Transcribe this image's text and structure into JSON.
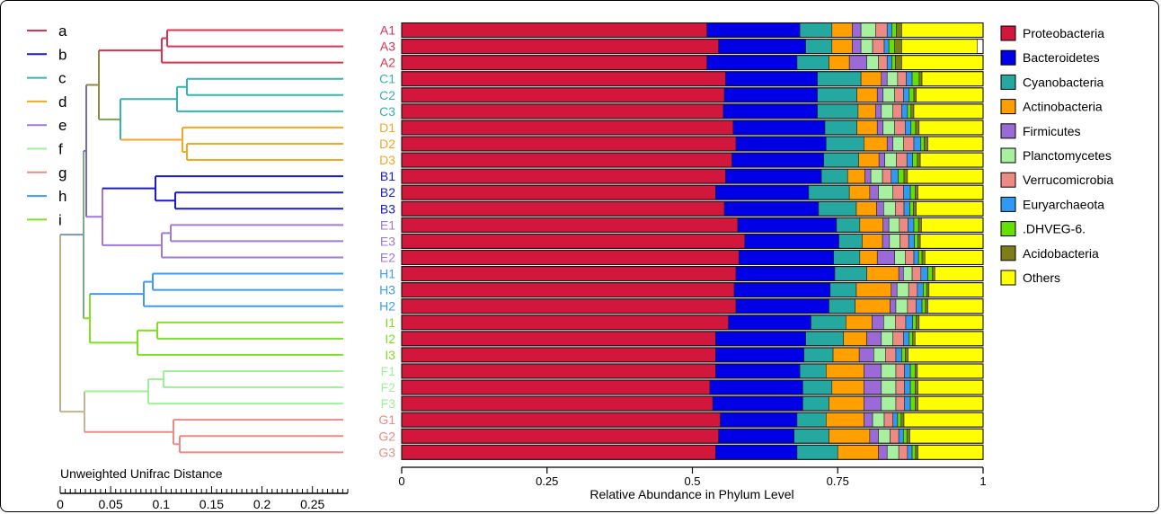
{
  "chart_data": {
    "type": "bar",
    "orientation": "horizontal",
    "stacked": true,
    "xlabel": "Relative Abundance in Phylum Level",
    "xlim": [
      0,
      1
    ],
    "xticks": [
      "0",
      "0.25",
      "0.5",
      "0.75",
      "1"
    ],
    "xtick_values": [
      0,
      0.25,
      0.5,
      0.75,
      1
    ],
    "legend_position": "right",
    "categories": [
      "A1",
      "A3",
      "A2",
      "C1",
      "C2",
      "C3",
      "D1",
      "D2",
      "D3",
      "B1",
      "B2",
      "B3",
      "E1",
      "E3",
      "E2",
      "H1",
      "H3",
      "H2",
      "I1",
      "I2",
      "I3",
      "F1",
      "F2",
      "F3",
      "G1",
      "G2",
      "G3"
    ],
    "category_groups": [
      "a",
      "a",
      "a",
      "c",
      "c",
      "c",
      "d",
      "d",
      "d",
      "b",
      "b",
      "b",
      "e",
      "e",
      "e",
      "h",
      "h",
      "h",
      "i",
      "i",
      "i",
      "f",
      "f",
      "f",
      "g",
      "g",
      "g"
    ],
    "series": [
      {
        "name": "Proteobacteria",
        "color": "#d2163c",
        "values": [
          0.525,
          0.545,
          0.525,
          0.557,
          0.555,
          0.553,
          0.57,
          0.575,
          0.568,
          0.557,
          0.54,
          0.555,
          0.578,
          0.59,
          0.58,
          0.575,
          0.572,
          0.575,
          0.562,
          0.54,
          0.54,
          0.54,
          0.53,
          0.535,
          0.548,
          0.545,
          0.54
        ]
      },
      {
        "name": "Bacteroidetes",
        "color": "#0000e6",
        "values": [
          0.16,
          0.15,
          0.155,
          0.158,
          0.16,
          0.162,
          0.158,
          0.155,
          0.158,
          0.165,
          0.16,
          0.162,
          0.17,
          0.162,
          0.163,
          0.17,
          0.165,
          0.16,
          0.142,
          0.155,
          0.152,
          0.145,
          0.16,
          0.155,
          0.132,
          0.13,
          0.14
        ]
      },
      {
        "name": "Cyanobacteria",
        "color": "#24a8a0",
        "values": [
          0.055,
          0.045,
          0.055,
          0.075,
          0.068,
          0.07,
          0.055,
          0.065,
          0.06,
          0.045,
          0.07,
          0.065,
          0.04,
          0.04,
          0.045,
          0.055,
          0.045,
          0.045,
          0.06,
          0.065,
          0.05,
          0.045,
          0.05,
          0.045,
          0.05,
          0.06,
          0.07
        ]
      },
      {
        "name": "Actinobacteria",
        "color": "#ffa000",
        "values": [
          0.035,
          0.035,
          0.035,
          0.035,
          0.035,
          0.03,
          0.035,
          0.04,
          0.035,
          0.03,
          0.035,
          0.035,
          0.04,
          0.035,
          0.03,
          0.055,
          0.06,
          0.06,
          0.045,
          0.04,
          0.045,
          0.065,
          0.055,
          0.06,
          0.065,
          0.07,
          0.07
        ]
      },
      {
        "name": "Firmicutes",
        "color": "#9a6ad6",
        "values": [
          0.015,
          0.015,
          0.03,
          0.01,
          0.01,
          0.01,
          0.01,
          0.01,
          0.01,
          0.01,
          0.015,
          0.012,
          0.01,
          0.012,
          0.03,
          0.008,
          0.01,
          0.01,
          0.02,
          0.025,
          0.025,
          0.03,
          0.03,
          0.03,
          0.015,
          0.015,
          0.015
        ]
      },
      {
        "name": "Planctomycetes",
        "color": "#a6f0a0",
        "values": [
          0.025,
          0.02,
          0.02,
          0.018,
          0.02,
          0.02,
          0.02,
          0.018,
          0.02,
          0.02,
          0.025,
          0.02,
          0.018,
          0.018,
          0.018,
          0.015,
          0.02,
          0.02,
          0.02,
          0.02,
          0.02,
          0.025,
          0.025,
          0.025,
          0.02,
          0.02,
          0.02
        ]
      },
      {
        "name": "Verrucomicrobia",
        "color": "#ee8a84",
        "values": [
          0.02,
          0.02,
          0.015,
          0.015,
          0.015,
          0.015,
          0.018,
          0.018,
          0.018,
          0.015,
          0.018,
          0.015,
          0.015,
          0.015,
          0.015,
          0.015,
          0.015,
          0.015,
          0.018,
          0.018,
          0.018,
          0.015,
          0.015,
          0.015,
          0.015,
          0.015,
          0.015
        ]
      },
      {
        "name": "Euryarchaeota",
        "color": "#2f9af5",
        "values": [
          0.008,
          0.008,
          0.008,
          0.01,
          0.01,
          0.01,
          0.01,
          0.012,
          0.01,
          0.012,
          0.012,
          0.01,
          0.01,
          0.01,
          0.008,
          0.012,
          0.01,
          0.01,
          0.012,
          0.01,
          0.01,
          0.01,
          0.01,
          0.01,
          0.008,
          0.008,
          0.008
        ]
      },
      {
        "name": ".DHVEG-6.",
        "color": "#66e000",
        "values": [
          0.008,
          0.01,
          0.006,
          0.012,
          0.008,
          0.006,
          0.008,
          0.006,
          0.008,
          0.01,
          0.008,
          0.006,
          0.008,
          0.006,
          0.006,
          0.008,
          0.006,
          0.006,
          0.006,
          0.006,
          0.006,
          0.008,
          0.008,
          0.008,
          0.006,
          0.006,
          0.006
        ]
      },
      {
        "name": "Acidobacteria",
        "color": "#7e7e18",
        "values": [
          0.009,
          0.012,
          0.011,
          0.005,
          0.004,
          0.005,
          0.006,
          0.006,
          0.005,
          0.006,
          0.005,
          0.005,
          0.005,
          0.004,
          0.005,
          0.004,
          0.004,
          0.004,
          0.005,
          0.004,
          0.005,
          0.004,
          0.005,
          0.005,
          0.005,
          0.005,
          0.004
        ]
      },
      {
        "name": "Others",
        "color": "#ffff00",
        "values": [
          0.14,
          0.13,
          0.14,
          0.105,
          0.115,
          0.119,
          0.11,
          0.095,
          0.108,
          0.13,
          0.112,
          0.115,
          0.106,
          0.108,
          0.1,
          0.083,
          0.093,
          0.095,
          0.11,
          0.117,
          0.129,
          0.113,
          0.112,
          0.112,
          0.136,
          0.126,
          0.112
        ]
      }
    ]
  },
  "dendrogram": {
    "title": "Unweighted Unifrac Distance",
    "scale_ticks": [
      "0",
      "0.05",
      "0.1",
      "0.15",
      "0.2",
      "0.25"
    ],
    "scale_tick_values": [
      0,
      0.05,
      0.1,
      0.15,
      0.2,
      0.25
    ],
    "group_legend": [
      {
        "key": "a",
        "color": "#dc3250"
      },
      {
        "key": "b",
        "color": "#1a1ad0"
      },
      {
        "key": "c",
        "color": "#34b4b0"
      },
      {
        "key": "d",
        "color": "#f5a623"
      },
      {
        "key": "e",
        "color": "#a07ad8"
      },
      {
        "key": "f",
        "color": "#9ef09a"
      },
      {
        "key": "g",
        "color": "#ee8a84"
      },
      {
        "key": "h",
        "color": "#3c9cf0"
      },
      {
        "key": "i",
        "color": "#80e020"
      }
    ]
  }
}
